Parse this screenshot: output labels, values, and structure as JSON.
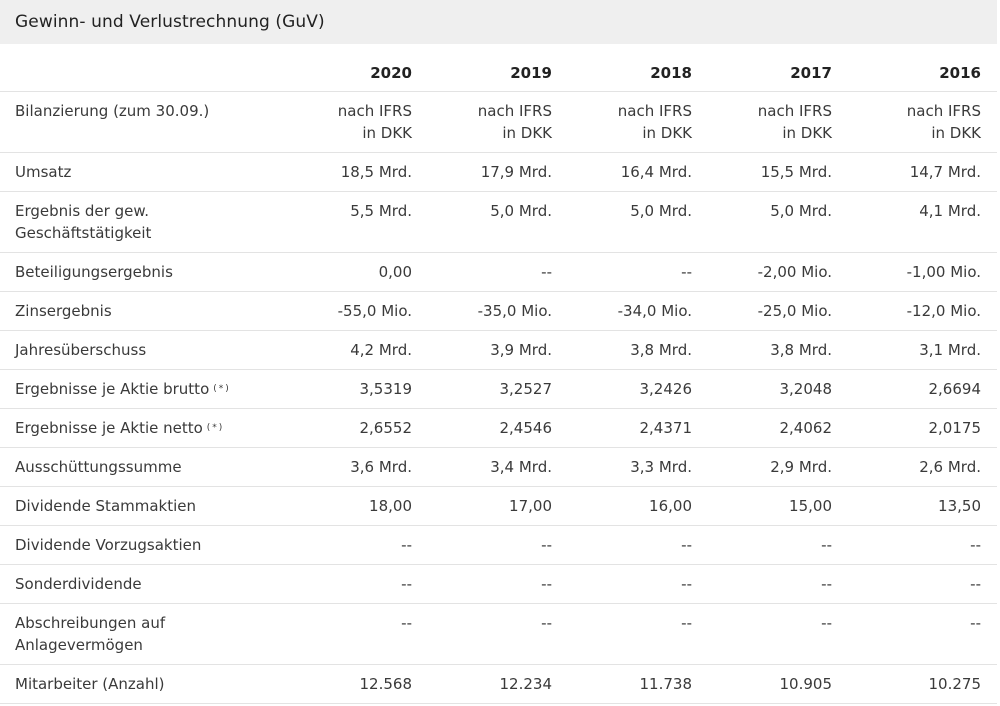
{
  "panel": {
    "title": "Gewinn- und Verlustrechnung (GuV)"
  },
  "table": {
    "years": [
      "2020",
      "2019",
      "2018",
      "2017",
      "2016"
    ],
    "rows": [
      {
        "id": "bilanzierung",
        "label": "Bilanzierung (zum 30.09.)",
        "values": [
          "nach IFRS\nin DKK",
          "nach IFRS\nin DKK",
          "nach IFRS\nin DKK",
          "nach IFRS\nin DKK",
          "nach IFRS\nin DKK"
        ]
      },
      {
        "id": "umsatz",
        "label": "Umsatz",
        "values": [
          "18,5 Mrd.",
          "17,9 Mrd.",
          "16,4 Mrd.",
          "15,5 Mrd.",
          "14,7 Mrd."
        ]
      },
      {
        "id": "ergebnis-gew-geschaeftstaetigkeit",
        "label": "Ergebnis der gew.\nGeschäftstätigkeit",
        "values": [
          "5,5 Mrd.",
          "5,0 Mrd.",
          "5,0 Mrd.",
          "5,0 Mrd.",
          "4,1 Mrd."
        ]
      },
      {
        "id": "beteiligungsergebnis",
        "label": "Beteiligungsergebnis",
        "values": [
          "0,00",
          "--",
          "--",
          "-2,00 Mio.",
          "-1,00 Mio."
        ]
      },
      {
        "id": "zinsergebnis",
        "label": "Zinsergebnis",
        "values": [
          "-55,0 Mio.",
          "-35,0 Mio.",
          "-34,0 Mio.",
          "-25,0 Mio.",
          "-12,0 Mio."
        ]
      },
      {
        "id": "jahresueberschuss",
        "label": "Jahresüberschuss",
        "values": [
          "4,2 Mrd.",
          "3,9 Mrd.",
          "3,8 Mrd.",
          "3,8 Mrd.",
          "3,1 Mrd."
        ]
      },
      {
        "id": "ergebnis-je-aktie-brutto",
        "label": "Ergebnisse je Aktie brutto",
        "note": "(*)",
        "values": [
          "3,5319",
          "3,2527",
          "3,2426",
          "3,2048",
          "2,6694"
        ]
      },
      {
        "id": "ergebnis-je-aktie-netto",
        "label": "Ergebnisse je Aktie netto",
        "note": "(*)",
        "values": [
          "2,6552",
          "2,4546",
          "2,4371",
          "2,4062",
          "2,0175"
        ]
      },
      {
        "id": "ausschuettungssumme",
        "label": "Ausschüttungssumme",
        "values": [
          "3,6 Mrd.",
          "3,4 Mrd.",
          "3,3 Mrd.",
          "2,9 Mrd.",
          "2,6 Mrd."
        ]
      },
      {
        "id": "dividende-stammaktien",
        "label": "Dividende Stammaktien",
        "values": [
          "18,00",
          "17,00",
          "16,00",
          "15,00",
          "13,50"
        ]
      },
      {
        "id": "dividende-vorzugsaktien",
        "label": "Dividende Vorzugsaktien",
        "values": [
          "--",
          "--",
          "--",
          "--",
          "--"
        ]
      },
      {
        "id": "sonderdividende",
        "label": "Sonderdividende",
        "values": [
          "--",
          "--",
          "--",
          "--",
          "--"
        ]
      },
      {
        "id": "abschreibungen",
        "label": "Abschreibungen auf\nAnlagevermögen",
        "values": [
          "--",
          "--",
          "--",
          "--",
          "--"
        ]
      },
      {
        "id": "mitarbeiter",
        "label": "Mitarbeiter (Anzahl)",
        "values": [
          "12.568",
          "12.234",
          "11.738",
          "10.905",
          "10.275"
        ]
      }
    ]
  }
}
